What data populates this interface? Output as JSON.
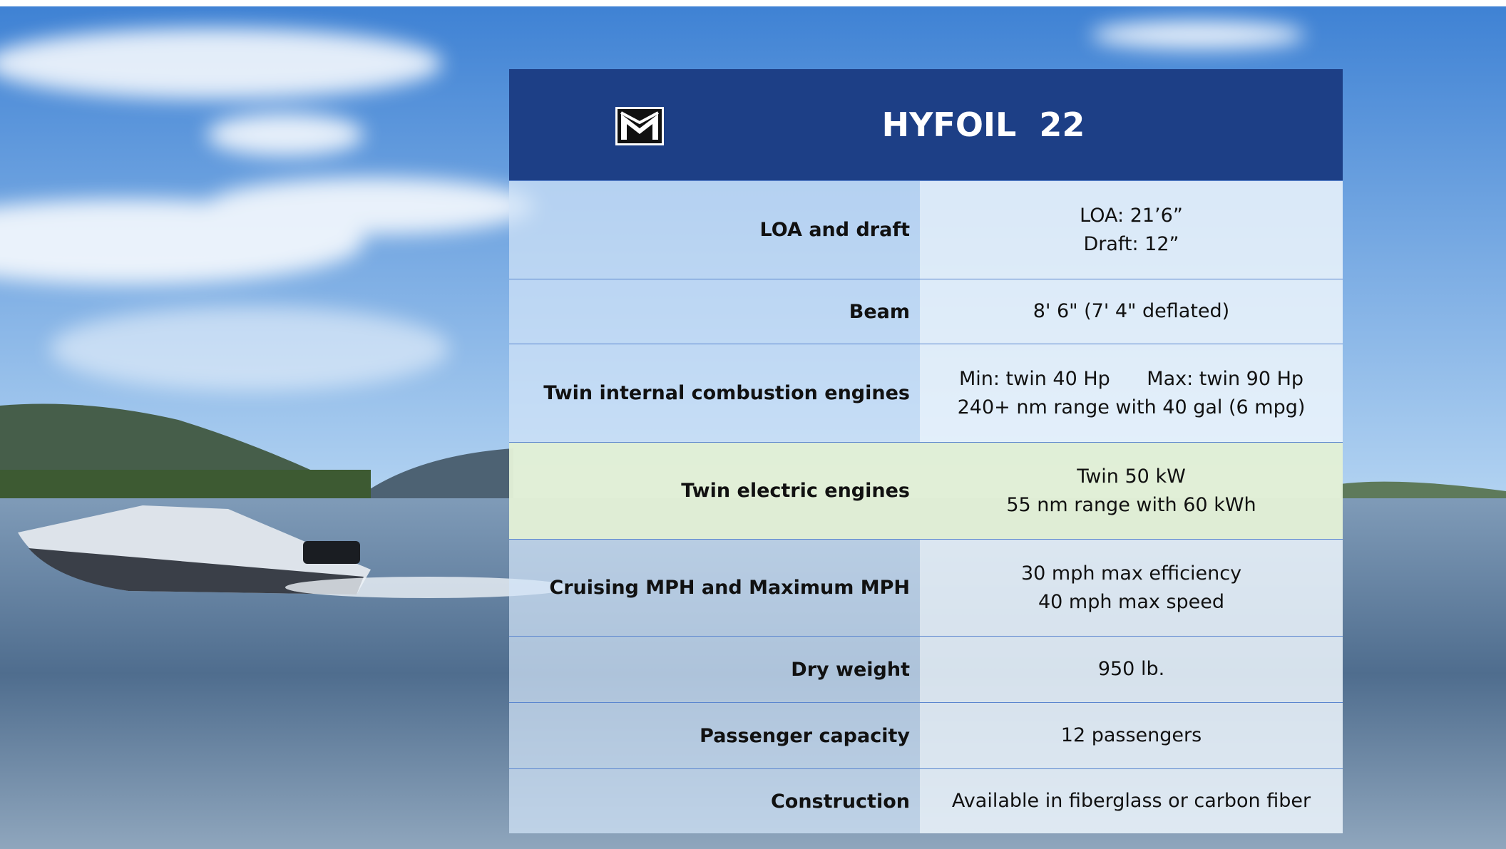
{
  "header": {
    "title": "HYFOIL  22"
  },
  "table": {
    "rows": [
      {
        "label": "LOA and draft",
        "value": [
          "LOA: 21’6”",
          "Draft: 12”"
        ]
      },
      {
        "label": "Beam",
        "value": [
          "8' 6\" (7' 4\" deflated)"
        ]
      },
      {
        "label": "Twin internal combustion engines",
        "value": [
          "Min: twin 40 Hp      Max: twin 90 Hp",
          "240+ nm range with 40 gal (6 mpg)"
        ]
      },
      {
        "label": "Twin electric engines",
        "value": [
          "Twin 50 kW",
          "55 nm range with 60 kWh"
        ]
      },
      {
        "label": "Cruising MPH and Maximum MPH",
        "value": [
          "30 mph max efficiency",
          "40 mph max speed"
        ]
      },
      {
        "label": "Dry weight",
        "value": [
          "950 lb."
        ]
      },
      {
        "label": "Passenger capacity",
        "value": [
          "12 passengers"
        ]
      },
      {
        "label": "Construction",
        "value": [
          "Available in fiberglass or carbon fiber"
        ]
      }
    ]
  }
}
